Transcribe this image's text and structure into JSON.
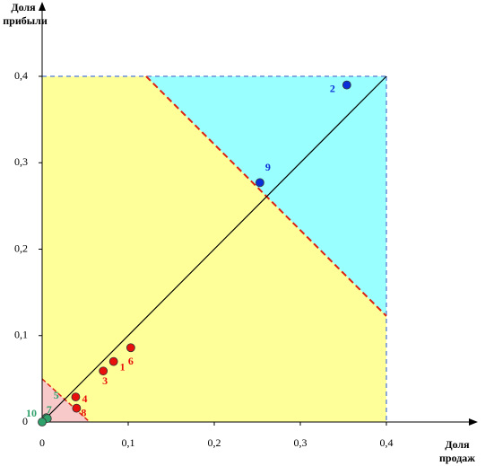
{
  "chart_data": {
    "type": "scatter",
    "ylabel": [
      "Доля",
      "прибыли"
    ],
    "xlabel": [
      "Доля",
      "продаж"
    ],
    "xlim": [
      0,
      0.4
    ],
    "ylim": [
      0,
      0.4
    ],
    "xticks": [
      0,
      {
        "value": 0.1,
        "label": "0,1"
      },
      {
        "value": 0.2,
        "label": "0,2"
      },
      {
        "value": 0.3,
        "label": "0,3"
      },
      {
        "value": 0.4,
        "label": "0,4"
      }
    ],
    "yticks": [
      0,
      {
        "value": 0.1,
        "label": "0,1"
      },
      {
        "value": 0.2,
        "label": "0,2"
      },
      {
        "value": 0.3,
        "label": "0,3"
      },
      {
        "value": 0.4,
        "label": "0,4"
      }
    ],
    "series": [
      {
        "color": "#e8100c",
        "label_color": "#e8100c",
        "labels": [
          "1",
          "3",
          "4",
          "6",
          "8"
        ],
        "x": [
          0.083,
          0.071,
          0.039,
          0.103,
          0.04
        ],
        "y": [
          0.07,
          0.059,
          0.029,
          0.086,
          0.016
        ]
      },
      {
        "color": "#0a2fd8",
        "label_color": "#0a2fd8",
        "labels": [
          "2",
          "9"
        ],
        "x": [
          0.354,
          0.253
        ],
        "y": [
          0.39,
          0.277
        ]
      },
      {
        "color": "#2ea06a",
        "label_color": "#2ea06a",
        "labels": [
          "5",
          "7",
          "10"
        ],
        "x": [
          0.005,
          0.006,
          0
        ],
        "y": [
          0.005,
          0.004,
          0
        ]
      }
    ]
  }
}
